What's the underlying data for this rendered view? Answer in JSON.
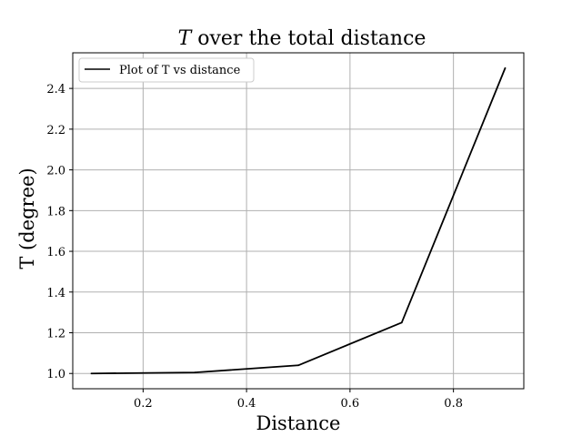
{
  "chart_data": {
    "type": "line",
    "title_symbol": "T",
    "title_rest": " over the total distance",
    "xlabel": "Distance",
    "ylabel": "T (degree)",
    "xlim": [
      0.064,
      0.936
    ],
    "ylim": [
      0.925,
      2.575
    ],
    "xticks": [
      0.2,
      0.4,
      0.6,
      0.8
    ],
    "xtick_labels": [
      "0.2",
      "0.4",
      "0.6",
      "0.8"
    ],
    "yticks": [
      1.0,
      1.2,
      1.4,
      1.6,
      1.8,
      2.0,
      2.2,
      2.4
    ],
    "ytick_labels": [
      "1.0",
      "1.2",
      "1.4",
      "1.6",
      "1.8",
      "2.0",
      "2.2",
      "2.4"
    ],
    "grid": true,
    "legend_position": "top-left",
    "series": [
      {
        "name": "Plot of T vs distance",
        "color": "#000000",
        "x": [
          0.1,
          0.3,
          0.5,
          0.7,
          0.9
        ],
        "y": [
          1.0,
          1.005,
          1.04,
          1.25,
          2.5
        ]
      }
    ]
  }
}
